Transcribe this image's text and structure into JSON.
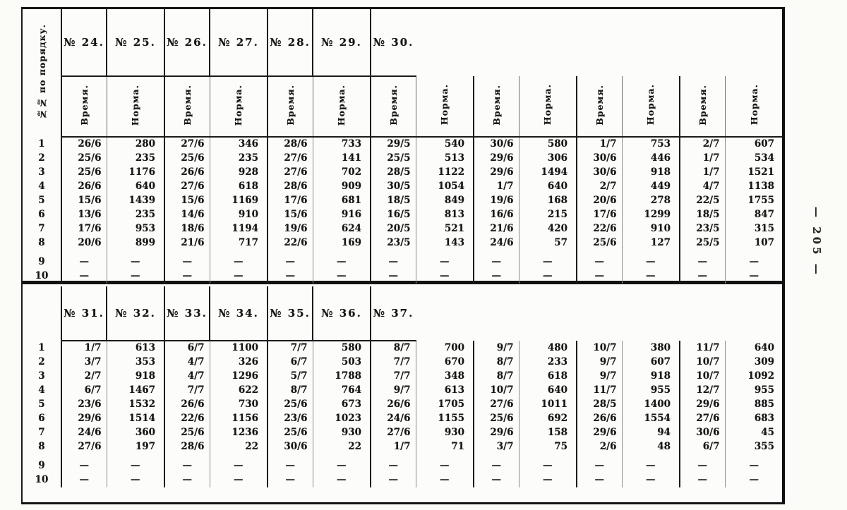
{
  "page": {
    "side_page_number": "— 205 —"
  },
  "table": {
    "row_header_label": "№№ по порядку.",
    "sub_header_time": "Время.",
    "sub_header_norm": "Норма.",
    "row_numbers": [
      "1",
      "2",
      "3",
      "4",
      "5",
      "6",
      "7",
      "8",
      "9",
      "10"
    ],
    "dash": "—",
    "top_groups": [
      {
        "label": "№ 24.",
        "rows": [
          [
            "26/6",
            "280"
          ],
          [
            "25/6",
            "235"
          ],
          [
            "25/6",
            "1176"
          ],
          [
            "26/6",
            "640"
          ],
          [
            "15/6",
            "1439"
          ],
          [
            "13/6",
            "235"
          ],
          [
            "17/6",
            "953"
          ],
          [
            "20/6",
            "899"
          ],
          [
            "—",
            "—"
          ],
          [
            "—",
            "—"
          ]
        ]
      },
      {
        "label": "№ 25.",
        "rows": [
          [
            "27/6",
            "346"
          ],
          [
            "25/6",
            "235"
          ],
          [
            "26/6",
            "928"
          ],
          [
            "27/6",
            "618"
          ],
          [
            "15/6",
            "1169"
          ],
          [
            "14/6",
            "910"
          ],
          [
            "18/6",
            "1194"
          ],
          [
            "21/6",
            "717"
          ],
          [
            "—",
            "—"
          ],
          [
            "—",
            "—"
          ]
        ]
      },
      {
        "label": "№ 26.",
        "rows": [
          [
            "28/6",
            "733"
          ],
          [
            "27/6",
            "141"
          ],
          [
            "27/6",
            "702"
          ],
          [
            "28/6",
            "909"
          ],
          [
            "17/6",
            "681"
          ],
          [
            "15/6",
            "916"
          ],
          [
            "19/6",
            "624"
          ],
          [
            "22/6",
            "169"
          ],
          [
            "—",
            "—"
          ],
          [
            "—",
            "—"
          ]
        ]
      },
      {
        "label": "№ 27.",
        "rows": [
          [
            "29/5",
            "540"
          ],
          [
            "25/5",
            "513"
          ],
          [
            "28/5",
            "1122"
          ],
          [
            "30/5",
            "1054"
          ],
          [
            "18/5",
            "849"
          ],
          [
            "16/5",
            "813"
          ],
          [
            "20/5",
            "521"
          ],
          [
            "23/5",
            "143"
          ],
          [
            "—",
            "—"
          ],
          [
            "—",
            "—"
          ]
        ]
      },
      {
        "label": "№ 28.",
        "rows": [
          [
            "30/6",
            "580"
          ],
          [
            "29/6",
            "306"
          ],
          [
            "29/6",
            "1494"
          ],
          [
            "1/7",
            "640"
          ],
          [
            "19/6",
            "168"
          ],
          [
            "16/6",
            "215"
          ],
          [
            "21/6",
            "420"
          ],
          [
            "24/6",
            "57"
          ],
          [
            "—",
            "—"
          ],
          [
            "—",
            "—"
          ]
        ]
      },
      {
        "label": "№ 29.",
        "rows": [
          [
            "1/7",
            "753"
          ],
          [
            "30/6",
            "446"
          ],
          [
            "30/6",
            "918"
          ],
          [
            "2/7",
            "449"
          ],
          [
            "20/6",
            "278"
          ],
          [
            "17/6",
            "1299"
          ],
          [
            "22/6",
            "910"
          ],
          [
            "25/6",
            "127"
          ],
          [
            "—",
            "—"
          ],
          [
            "—",
            "—"
          ]
        ]
      },
      {
        "label": "№ 30.",
        "rows": [
          [
            "2/7",
            "607"
          ],
          [
            "1/7",
            "534"
          ],
          [
            "1/7",
            "1521"
          ],
          [
            "4/7",
            "1138"
          ],
          [
            "22/5",
            "1755"
          ],
          [
            "18/5",
            "847"
          ],
          [
            "23/5",
            "315"
          ],
          [
            "25/5",
            "107"
          ],
          [
            "—",
            "—"
          ],
          [
            "—",
            "—"
          ]
        ]
      }
    ],
    "bottom_groups": [
      {
        "label": "№ 31.",
        "rows": [
          [
            "1/7",
            "613"
          ],
          [
            "3/7",
            "353"
          ],
          [
            "2/7",
            "918"
          ],
          [
            "6/7",
            "1467"
          ],
          [
            "23/6",
            "1532"
          ],
          [
            "29/6",
            "1514"
          ],
          [
            "24/6",
            "360"
          ],
          [
            "27/6",
            "197"
          ],
          [
            "—",
            "—"
          ],
          [
            "—",
            "—"
          ]
        ]
      },
      {
        "label": "№ 32.",
        "rows": [
          [
            "6/7",
            "1100"
          ],
          [
            "4/7",
            "326"
          ],
          [
            "4/7",
            "1296"
          ],
          [
            "7/7",
            "622"
          ],
          [
            "26/6",
            "730"
          ],
          [
            "22/6",
            "1156"
          ],
          [
            "25/6",
            "1236"
          ],
          [
            "28/6",
            "22"
          ],
          [
            "—",
            "—"
          ],
          [
            "—",
            "—"
          ]
        ]
      },
      {
        "label": "№ 33.",
        "rows": [
          [
            "7/7",
            "580"
          ],
          [
            "6/7",
            "503"
          ],
          [
            "5/7",
            "1788"
          ],
          [
            "8/7",
            "764"
          ],
          [
            "25/6",
            "673"
          ],
          [
            "23/6",
            "1023"
          ],
          [
            "25/6",
            "930"
          ],
          [
            "30/6",
            "22"
          ],
          [
            "—",
            "—"
          ],
          [
            "—",
            "—"
          ]
        ]
      },
      {
        "label": "№ 34.",
        "rows": [
          [
            "8/7",
            "700"
          ],
          [
            "7/7",
            "670"
          ],
          [
            "7/7",
            "348"
          ],
          [
            "9/7",
            "613"
          ],
          [
            "26/6",
            "1705"
          ],
          [
            "24/6",
            "1155"
          ],
          [
            "27/6",
            "930"
          ],
          [
            "1/7",
            "71"
          ],
          [
            "—",
            "—"
          ],
          [
            "—",
            "—"
          ]
        ]
      },
      {
        "label": "№ 35.",
        "rows": [
          [
            "9/7",
            "480"
          ],
          [
            "8/7",
            "233"
          ],
          [
            "8/7",
            "618"
          ],
          [
            "10/7",
            "640"
          ],
          [
            "27/6",
            "1011"
          ],
          [
            "25/6",
            "692"
          ],
          [
            "29/6",
            "158"
          ],
          [
            "3/7",
            "75"
          ],
          [
            "—",
            "—"
          ],
          [
            "—",
            "—"
          ]
        ]
      },
      {
        "label": "№ 36.",
        "rows": [
          [
            "10/7",
            "380"
          ],
          [
            "9/7",
            "607"
          ],
          [
            "9/7",
            "918"
          ],
          [
            "11/7",
            "955"
          ],
          [
            "28/5",
            "1400"
          ],
          [
            "26/6",
            "1554"
          ],
          [
            "29/6",
            "94"
          ],
          [
            "2/6",
            "48"
          ],
          [
            "—",
            "—"
          ],
          [
            "—",
            "—"
          ]
        ]
      },
      {
        "label": "№ 37.",
        "rows": [
          [
            "11/7",
            "640"
          ],
          [
            "10/7",
            "309"
          ],
          [
            "10/7",
            "1092"
          ],
          [
            "12/7",
            "955"
          ],
          [
            "29/6",
            "885"
          ],
          [
            "27/6",
            "683"
          ],
          [
            "30/6",
            "45"
          ],
          [
            "6/7",
            "355"
          ],
          [
            "—",
            "—"
          ],
          [
            "—",
            "—"
          ]
        ]
      }
    ]
  }
}
